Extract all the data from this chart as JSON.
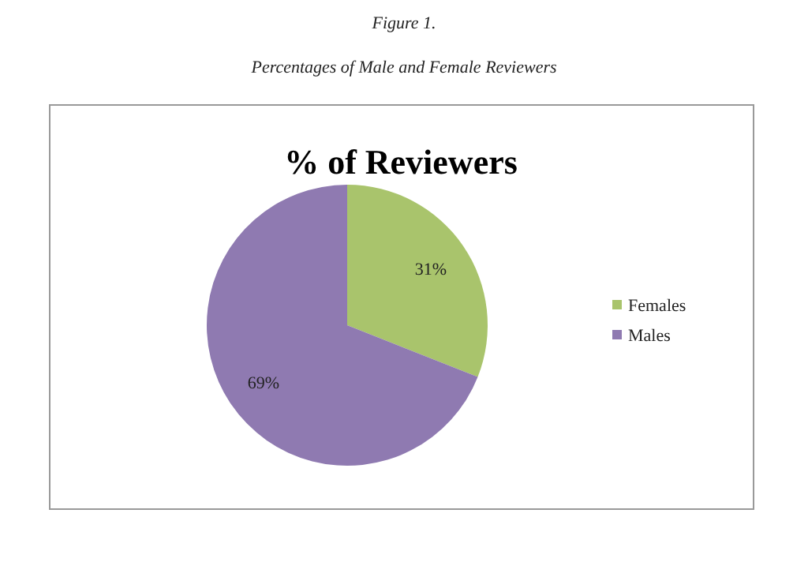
{
  "chart_data": {
    "type": "pie",
    "title": "% of Reviewers",
    "annotations": [
      "Figure 1.",
      "Percentages of Male and Female Reviewers"
    ],
    "categories": [
      "Females",
      "Males"
    ],
    "values": [
      31,
      69
    ],
    "colors": [
      "#a9c46c",
      "#8f7ab1"
    ],
    "value_labels": [
      "31%",
      "69%"
    ],
    "legend": "right"
  }
}
